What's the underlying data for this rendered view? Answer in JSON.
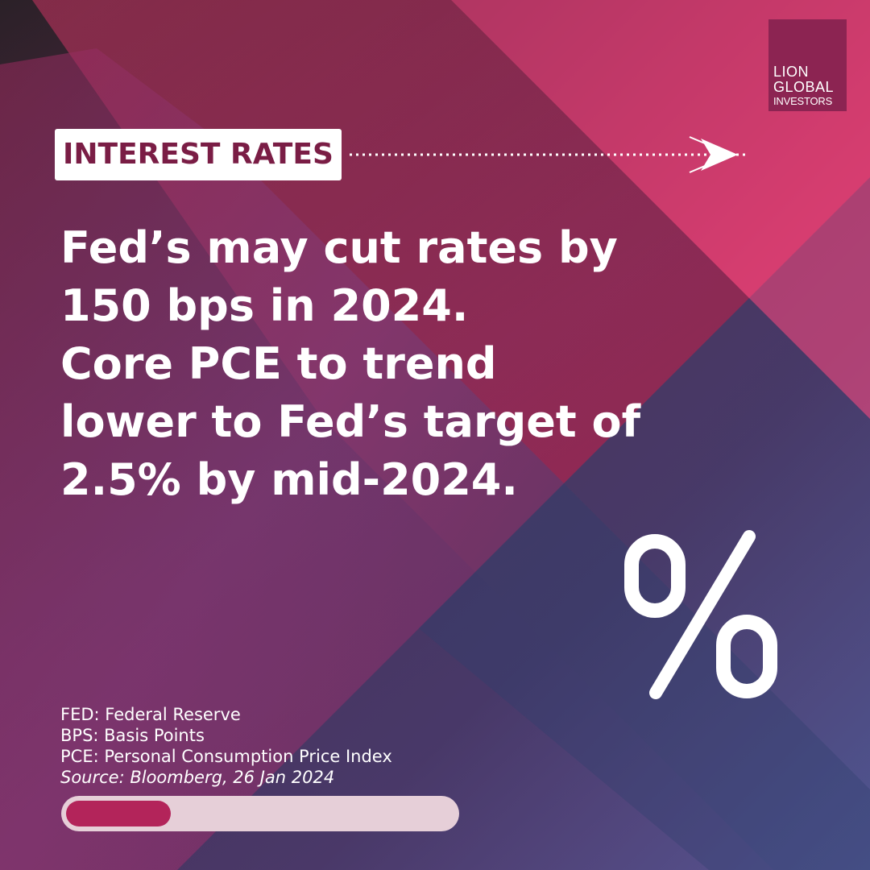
{
  "logo": {
    "line1": "LION",
    "line2": "GLOBAL",
    "line3": "INVESTORS"
  },
  "tag": "INTEREST RATES",
  "headline": [
    "Fed’s may cut rates by",
    "150 bps in 2024.",
    "Core PCE to trend",
    "lower to Fed’s target of",
    "2.5% by mid-2024."
  ],
  "icon": "percent-icon",
  "notes": {
    "fed": "FED: Federal Reserve",
    "bps": "BPS: Basis Points",
    "pce": "PCE: Personal Consumption Price Index",
    "source": "Source: Bloomberg, 26 Jan 2024"
  },
  "progress": {
    "fraction": 0.27
  },
  "colors": {
    "brand": "#8c2452",
    "tag_text": "#7a1d45",
    "progress_fill": "#b3245a",
    "progress_track": "#e6cfd8"
  }
}
